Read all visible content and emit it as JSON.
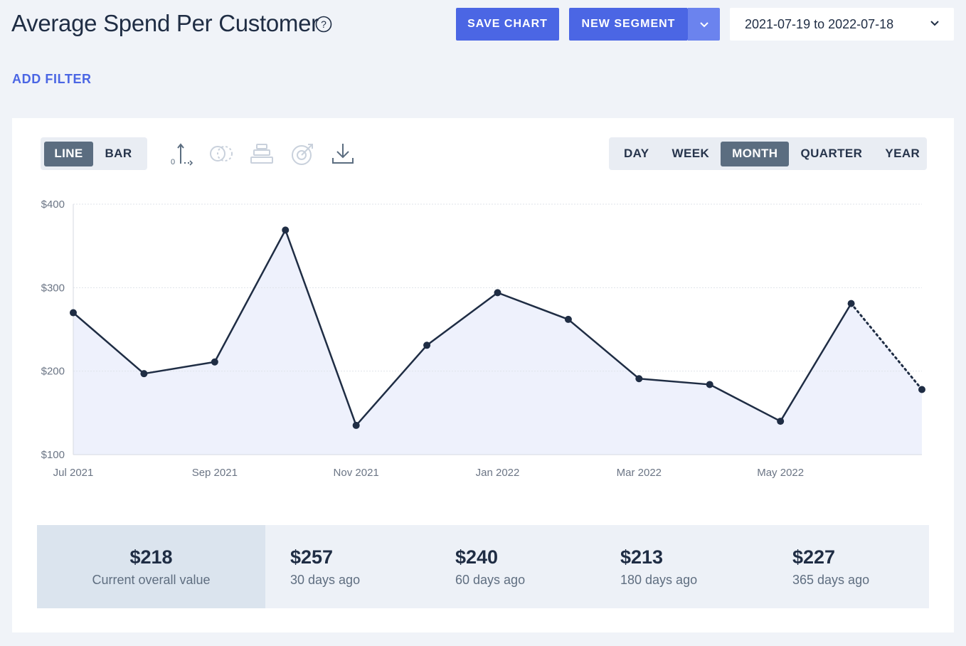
{
  "header": {
    "title": "Average Spend Per Customer",
    "save_label": "SAVE CHART",
    "segment_label": "NEW SEGMENT",
    "date_range": "2021-07-19 to 2022-07-18",
    "add_filter_label": "ADD FILTER"
  },
  "toolbar": {
    "chart_types": [
      "LINE",
      "BAR"
    ],
    "active_chart_type": "LINE",
    "icons": [
      "axis-zero-icon",
      "compare-icon",
      "funnel-stack-icon",
      "goal-target-icon",
      "download-icon"
    ],
    "periods": [
      "DAY",
      "WEEK",
      "MONTH",
      "QUARTER",
      "YEAR"
    ],
    "active_period": "MONTH"
  },
  "colors": {
    "accent": "#4b66e4",
    "line": "#1f2d44",
    "area_fill": "#eef1fc",
    "active_toggle": "#5b6d80"
  },
  "chart_data": {
    "type": "line",
    "x": [
      "Jul 2021",
      "Aug 2021",
      "Sep 2021",
      "Oct 2021",
      "Nov 2021",
      "Dec 2021",
      "Jan 2022",
      "Feb 2022",
      "Mar 2022",
      "Apr 2022",
      "May 2022",
      "Jun 2022",
      "Jul 2022"
    ],
    "series": [
      {
        "values": [
          270,
          197,
          211,
          369,
          135,
          231,
          294,
          262,
          191,
          184,
          140,
          281,
          178
        ]
      }
    ],
    "tick_labels": [
      "Jul 2021",
      "Sep 2021",
      "Nov 2021",
      "Jan 2022",
      "Mar 2022",
      "May 2022"
    ],
    "y_ticks": [
      "$100",
      "$200",
      "$300",
      "$400"
    ],
    "ylim": [
      100,
      400
    ],
    "partial_last_point": true,
    "grid": true,
    "area_fill": true
  },
  "stats": [
    {
      "value": "$218",
      "label": "Current overall value"
    },
    {
      "value": "$257",
      "label": "30 days ago"
    },
    {
      "value": "$240",
      "label": "60 days ago"
    },
    {
      "value": "$213",
      "label": "180 days ago"
    },
    {
      "value": "$227",
      "label": "365 days ago"
    }
  ]
}
